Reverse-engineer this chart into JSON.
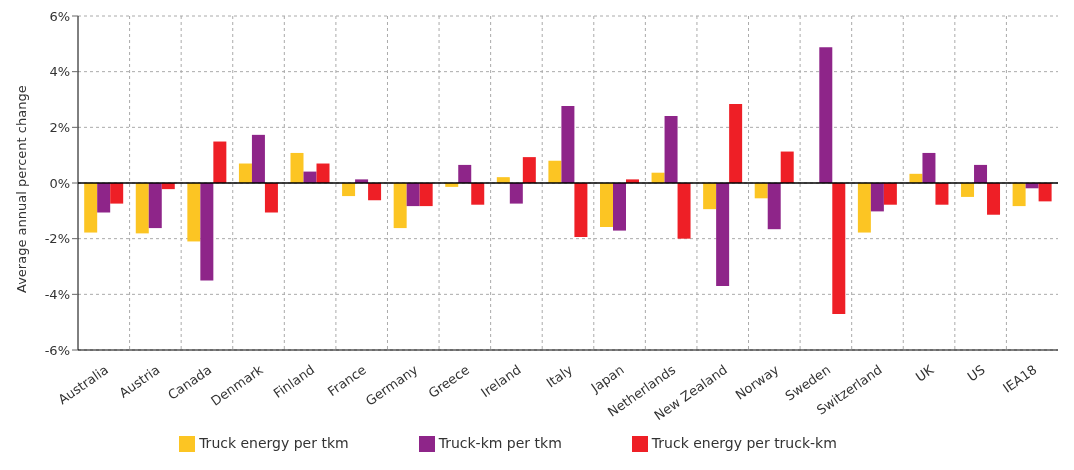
{
  "chart_data": {
    "type": "bar",
    "ylabel": "Average annual percent change",
    "categories": [
      "Australia",
      "Austria",
      "Canada",
      "Denmark",
      "Finland",
      "France",
      "Germany",
      "Greece",
      "Ireland",
      "Italy",
      "Japan",
      "Netherlands",
      "New Zealand",
      "Norway",
      "Sweden",
      "Switzerland",
      "UK",
      "US",
      "IEA18"
    ],
    "series": [
      {
        "name": "Truck energy per tkm",
        "color": "#fcc523",
        "values": [
          -1.78,
          -1.81,
          -2.1,
          0.7,
          1.08,
          -0.47,
          -1.62,
          -0.14,
          0.21,
          0.8,
          -1.58,
          0.37,
          -0.94,
          -0.55,
          0,
          -1.78,
          0.33,
          -0.5,
          -0.83
        ]
      },
      {
        "name": "Truck-km per tkm",
        "color": "#8e2589",
        "values": [
          -1.06,
          -1.62,
          -3.5,
          1.73,
          0.41,
          0.13,
          -0.83,
          0.65,
          -0.74,
          2.77,
          -1.71,
          2.41,
          -3.7,
          -1.66,
          4.88,
          -1.02,
          1.08,
          0.65,
          -0.19
        ]
      },
      {
        "name": "Truck energy per truck-km",
        "color": "#ee1f26",
        "values": [
          -0.74,
          -0.22,
          1.49,
          -1.06,
          0.7,
          -0.62,
          -0.83,
          -0.78,
          0.93,
          -1.94,
          0.13,
          -2.0,
          2.84,
          1.13,
          -4.71,
          -0.78,
          -0.78,
          -1.14,
          -0.66
        ]
      }
    ],
    "ylim": [
      -6,
      6
    ],
    "yticks": [
      {
        "value": -6,
        "label": "-6%"
      },
      {
        "value": -4,
        "label": "-4%"
      },
      {
        "value": -2,
        "label": "-2%"
      },
      {
        "value": 0,
        "label": "0%"
      },
      {
        "value": 2,
        "label": "2%"
      },
      {
        "value": 4,
        "label": "4%"
      },
      {
        "value": 6,
        "label": "6%"
      }
    ],
    "ref_lines": [
      {
        "axis": "y",
        "value": 0,
        "color": "#000000"
      }
    ],
    "grid": true,
    "legend": "bottom"
  }
}
